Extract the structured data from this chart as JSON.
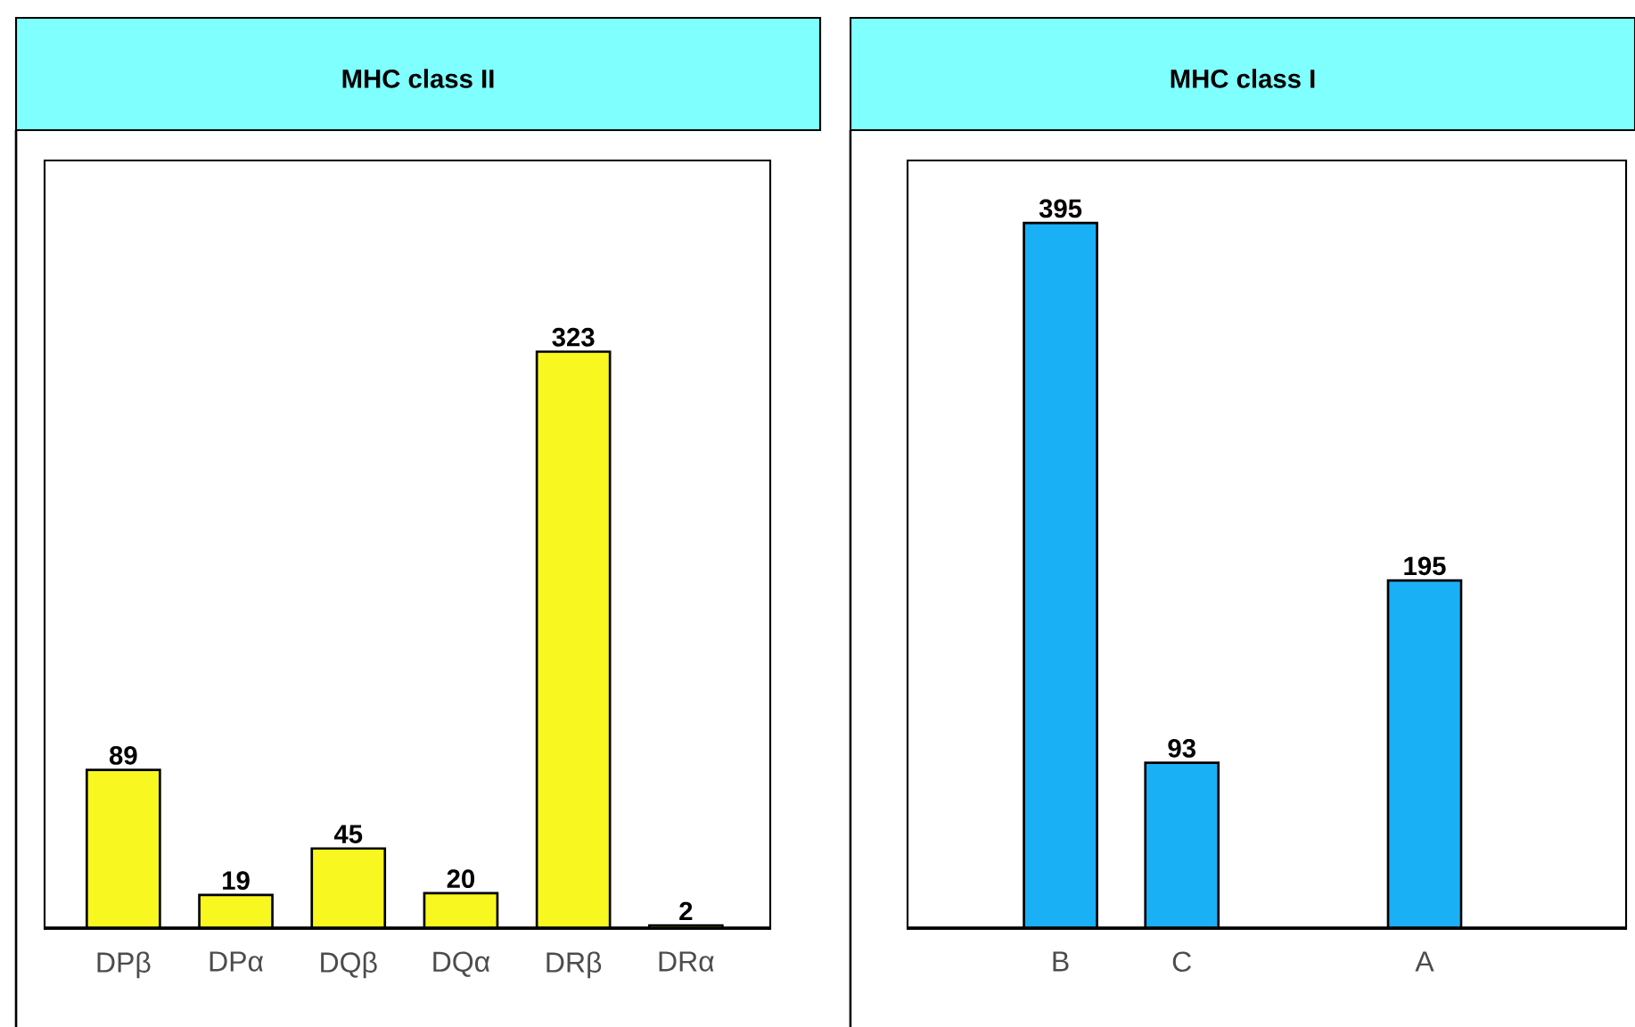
{
  "chart_data": [
    {
      "type": "bar",
      "title": "MHC class II",
      "categories": [
        "DPβ",
        "DPα",
        "DQβ",
        "DQα",
        "DRβ",
        "DRα"
      ],
      "values": [
        89,
        19,
        45,
        20,
        323,
        2
      ],
      "color": "#f8f820",
      "ylim": [
        0,
        430
      ],
      "data_labels": true,
      "tick_labels": "x"
    },
    {
      "type": "bar",
      "title": "MHC class I",
      "categories": [
        "B",
        "C",
        null,
        "A"
      ],
      "values": [
        395,
        93,
        null,
        195
      ],
      "color": "#1ab0f5",
      "ylim": [
        0,
        430
      ],
      "data_labels": true,
      "tick_labels": "x"
    }
  ]
}
